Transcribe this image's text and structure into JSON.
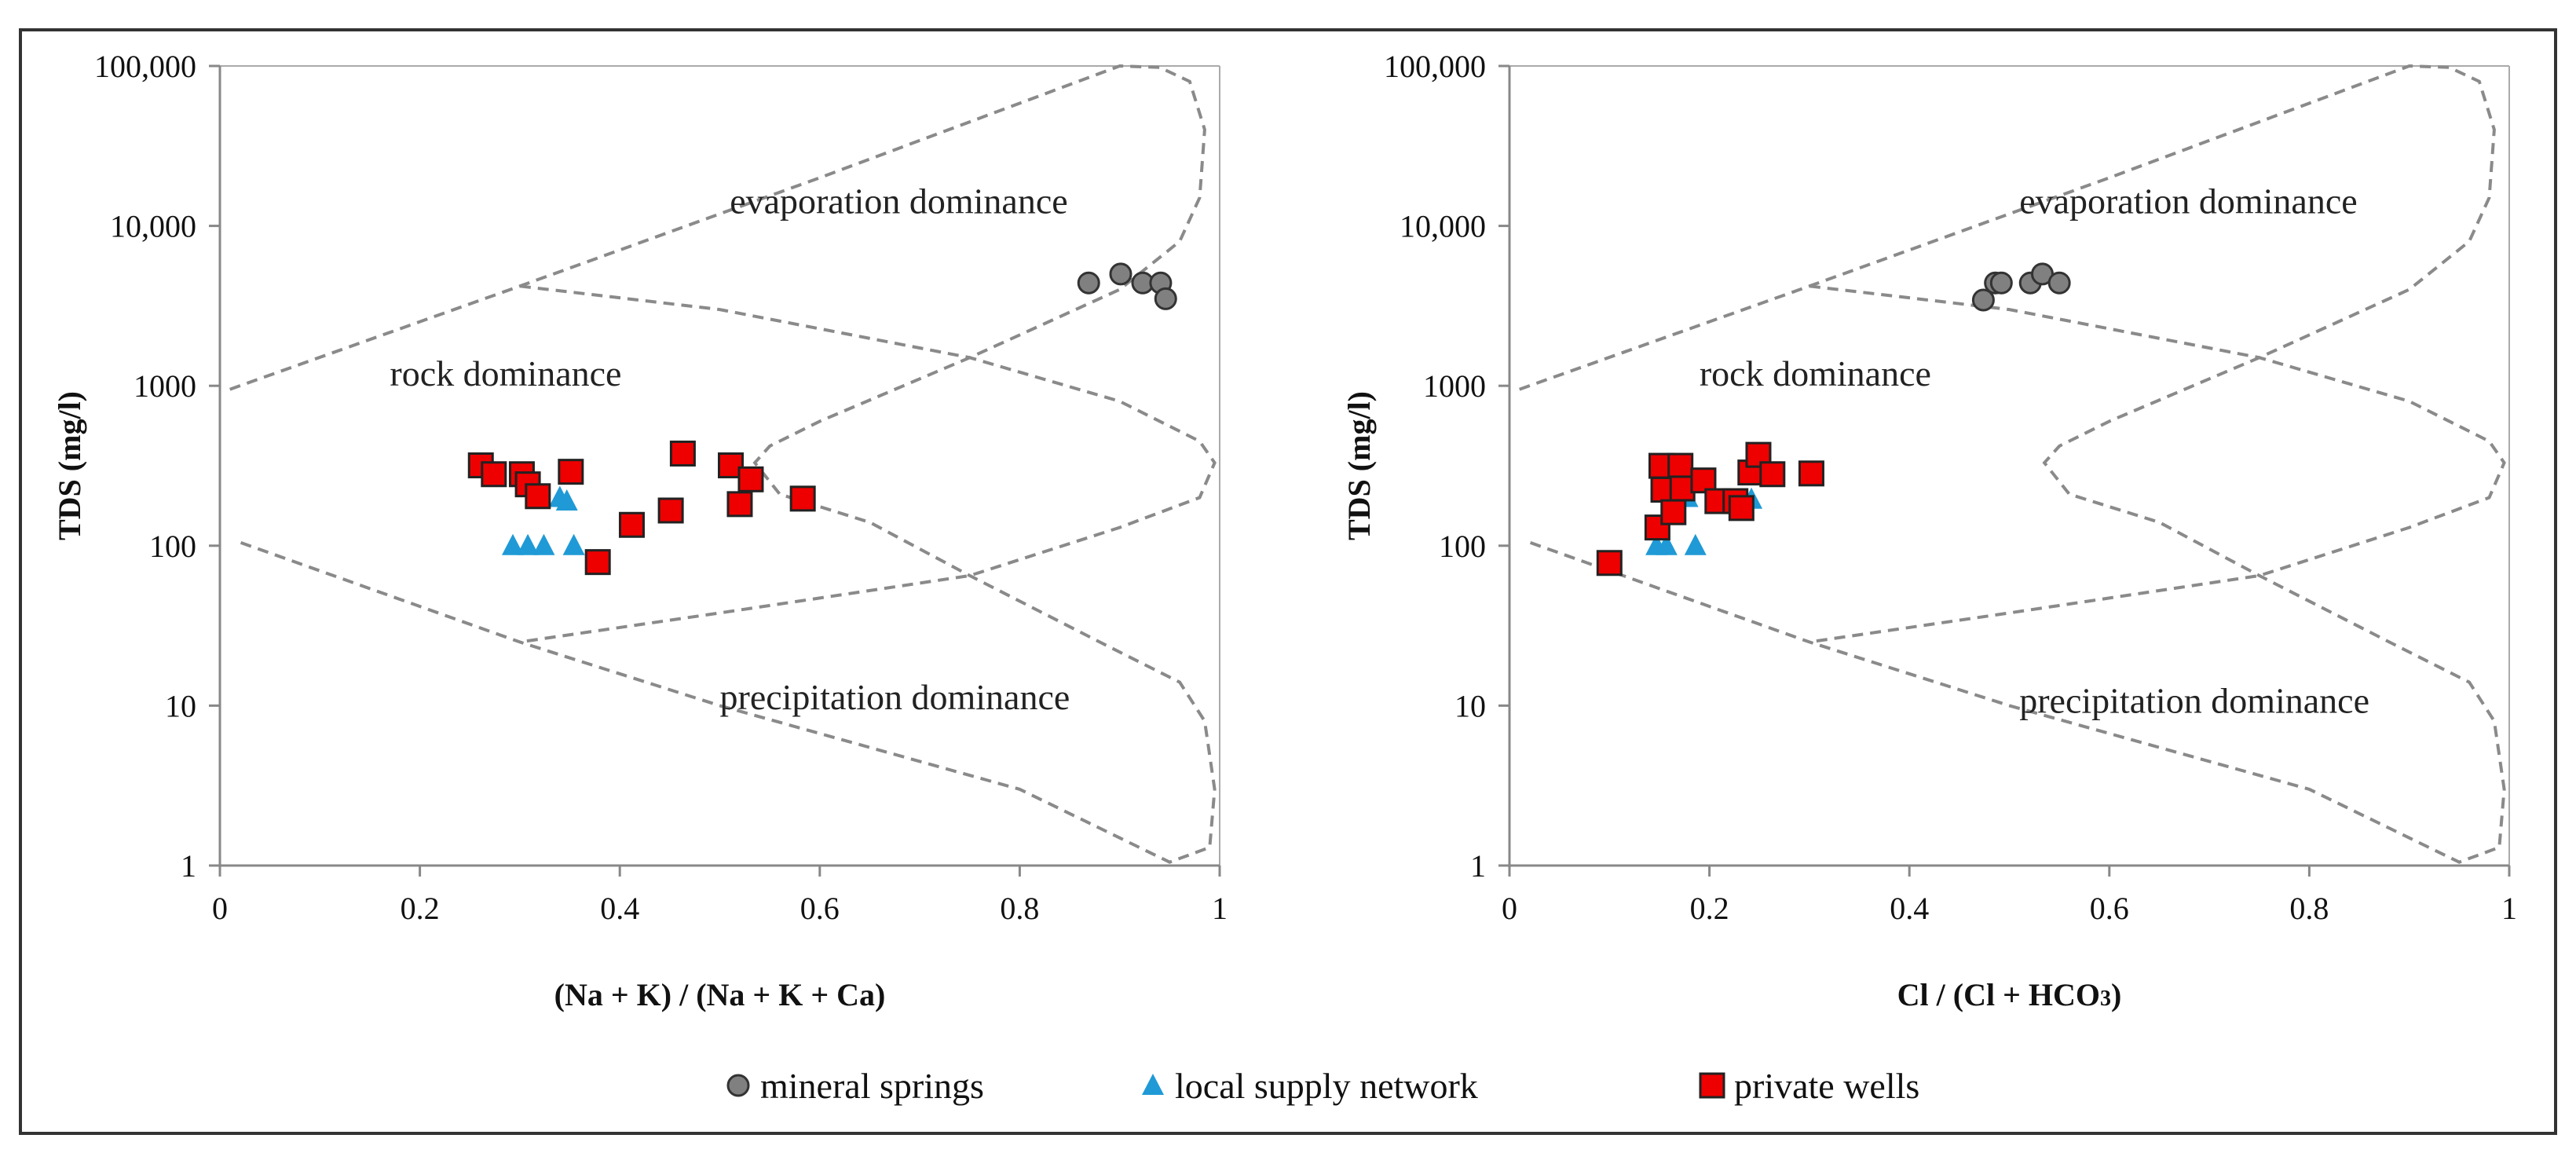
{
  "colors": {
    "mineral": "#808080",
    "supply": "#1f9ad6",
    "wells": "#ee0000"
  },
  "legend": [
    {
      "label": "mineral springs",
      "marker": "circle",
      "key": "mineral"
    },
    {
      "label": "local supply network",
      "marker": "triangle",
      "key": "supply"
    },
    {
      "label": "private wells",
      "marker": "square",
      "key": "wells"
    }
  ],
  "chart_data": [
    {
      "type": "scatter",
      "title": "",
      "xlabel": "(Na + K) / (Na + K + Ca)",
      "ylabel": "TDS (mg/l)",
      "xlim": [
        0,
        1
      ],
      "ylim": [
        1,
        100000
      ],
      "yscale": "log",
      "xticks": [
        "0",
        "0.2",
        "0.4",
        "0.6",
        "0.8",
        "1"
      ],
      "yticks": [
        "1",
        "10",
        "100",
        "1000",
        "10,000",
        "100,000"
      ],
      "regions": [
        "evaporation dominance",
        "rock dominance",
        "precipitation dominance"
      ],
      "series": [
        {
          "name": "mineral springs",
          "key": "mineral",
          "points": [
            [
              0.869,
              4400
            ],
            [
              0.901,
              5000
            ],
            [
              0.923,
              4400
            ],
            [
              0.941,
              4400
            ],
            [
              0.946,
              3500
            ]
          ]
        },
        {
          "name": "local supply network",
          "key": "supply",
          "points": [
            [
              0.293,
              100
            ],
            [
              0.308,
              100
            ],
            [
              0.324,
              100
            ],
            [
              0.354,
              100
            ],
            [
              0.34,
              200
            ],
            [
              0.347,
              190
            ]
          ]
        },
        {
          "name": "private wells",
          "key": "wells",
          "points": [
            [
              0.261,
              318
            ],
            [
              0.274,
              280
            ],
            [
              0.302,
              280
            ],
            [
              0.308,
              242
            ],
            [
              0.318,
              204
            ],
            [
              0.351,
              290
            ],
            [
              0.378,
              79
            ],
            [
              0.412,
              135
            ],
            [
              0.451,
              166
            ],
            [
              0.463,
              377
            ],
            [
              0.511,
              318
            ],
            [
              0.531,
              260
            ],
            [
              0.52,
              182
            ],
            [
              0.583,
              197
            ]
          ]
        }
      ]
    },
    {
      "type": "scatter",
      "title": "",
      "xlabel": "Cl / (Cl + HCO3)",
      "ylabel": "TDS (mg/l)",
      "xlim": [
        0,
        1
      ],
      "ylim": [
        1,
        100000
      ],
      "yscale": "log",
      "xticks": [
        "0",
        "0.2",
        "0.4",
        "0.6",
        "0.8",
        "1"
      ],
      "yticks": [
        "1",
        "10",
        "100",
        "1000",
        "10,000",
        "100,000"
      ],
      "regions": [
        "evaporation dominance",
        "rock dominance",
        "precipitation dominance"
      ],
      "series": [
        {
          "name": "mineral springs",
          "key": "mineral",
          "points": [
            [
              0.474,
              3440
            ],
            [
              0.486,
              4400
            ],
            [
              0.492,
              4400
            ],
            [
              0.521,
              4400
            ],
            [
              0.533,
              5000
            ],
            [
              0.55,
              4400
            ]
          ]
        },
        {
          "name": "local supply network",
          "key": "supply",
          "points": [
            [
              0.147,
              100
            ],
            [
              0.157,
              100
            ],
            [
              0.186,
              100
            ],
            [
              0.178,
              200
            ],
            [
              0.242,
              195
            ]
          ]
        },
        {
          "name": "private wells",
          "key": "wells",
          "points": [
            [
              0.1,
              78
            ],
            [
              0.148,
              130
            ],
            [
              0.152,
              316
            ],
            [
              0.154,
              224
            ],
            [
              0.164,
              162
            ],
            [
              0.171,
              316
            ],
            [
              0.173,
              228
            ],
            [
              0.194,
              256
            ],
            [
              0.208,
              190
            ],
            [
              0.226,
              190
            ],
            [
              0.232,
              172
            ],
            [
              0.241,
              287
            ],
            [
              0.249,
              370
            ],
            [
              0.263,
              280
            ],
            [
              0.302,
              283
            ]
          ]
        }
      ]
    }
  ]
}
